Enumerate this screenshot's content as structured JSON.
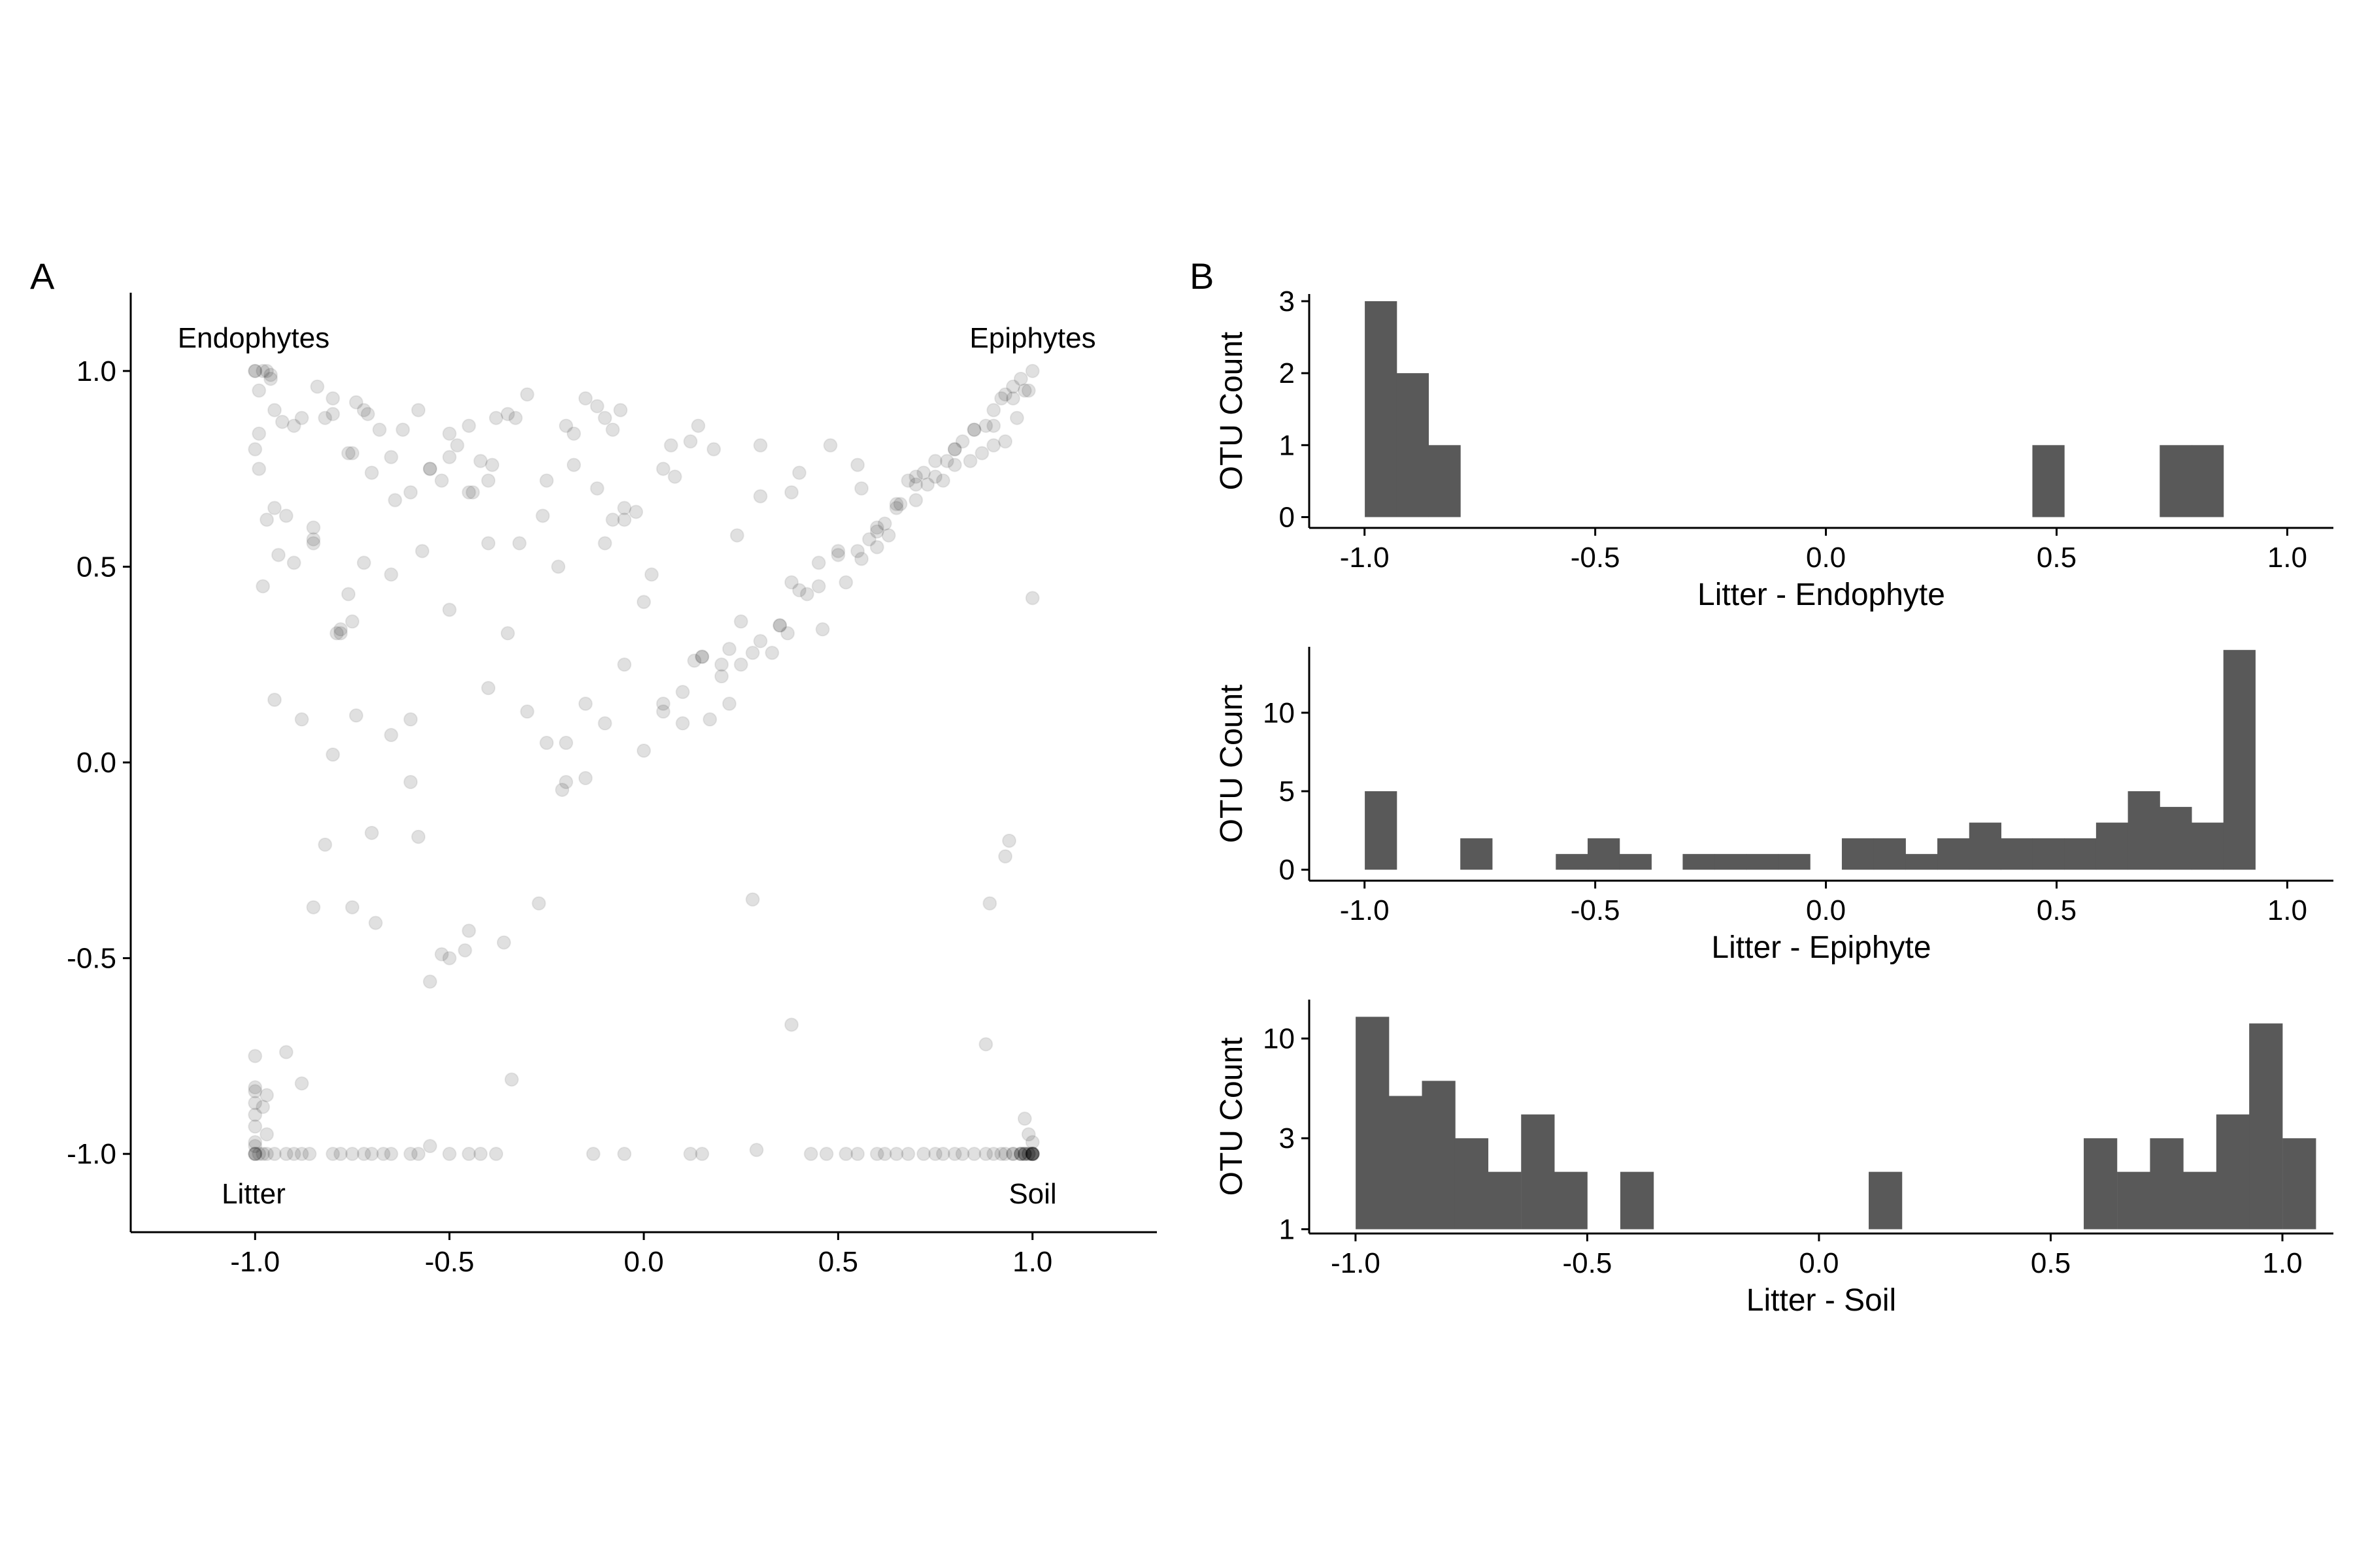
{
  "colors": {
    "bar": "#595959",
    "point": "#000000",
    "axis": "#000000"
  },
  "chart_data": [
    {
      "panel_label": "A",
      "type": "scatter",
      "xlim": [
        -1.32,
        1.32
      ],
      "ylim": [
        -1.2,
        1.2
      ],
      "xticks": [
        -1.0,
        -0.5,
        0.0,
        0.5,
        1.0
      ],
      "xtick_labels": [
        "-1.0",
        "-0.5",
        "0.0",
        "0.5",
        "1.0"
      ],
      "yticks": [
        -1.0,
        -0.5,
        0.0,
        0.5,
        1.0
      ],
      "ytick_labels": [
        "-1.0",
        "-0.5",
        "0.0",
        "0.5",
        "1.0"
      ],
      "grid": false,
      "point_alpha": 0.12,
      "corner_labels": {
        "top_left": "Endophytes",
        "top_right": "Epiphytes",
        "bottom_left": "Litter",
        "bottom_right": "Soil"
      },
      "x": [
        -1.0,
        -0.98,
        -0.97,
        -0.99,
        -0.95,
        -0.93,
        -1.0,
        -0.99,
        -0.96,
        -0.9,
        -0.88,
        -0.85,
        -0.8,
        -0.79,
        -0.78,
        -0.75,
        -0.74,
        -0.72,
        -0.7,
        -0.68,
        -0.65,
        -0.62,
        -0.6,
        -0.58,
        -0.55,
        -0.52,
        -0.5,
        -0.48,
        -0.45,
        -0.42,
        -0.4,
        -0.35,
        -0.3,
        -0.25,
        -0.2,
        -0.18,
        -0.15,
        -0.12,
        -0.1,
        -0.08,
        -0.05,
        -0.02,
        0.0,
        0.05,
        0.08,
        0.12,
        0.15,
        0.18,
        0.2,
        0.22,
        0.25,
        0.3,
        0.35,
        0.38,
        0.4,
        0.45,
        0.5,
        0.55,
        0.58,
        0.6,
        0.62,
        0.65,
        0.68,
        0.7,
        0.72,
        0.75,
        0.78,
        0.8,
        0.82,
        0.85,
        0.88,
        0.9,
        0.92,
        0.93,
        0.95,
        0.97,
        1.0,
        -0.99,
        -0.97,
        -0.95,
        -0.92,
        -0.88,
        -0.85,
        -0.8,
        -0.75,
        -0.7,
        -0.65,
        -0.6,
        -0.55,
        -0.5,
        -0.45,
        -0.4,
        -0.35,
        -0.3,
        -0.25,
        -0.2,
        -0.15,
        -0.1,
        -0.05,
        0.0,
        0.05,
        0.1,
        0.15,
        0.2,
        0.25,
        0.3,
        0.35,
        0.4,
        0.45,
        0.5,
        0.55,
        0.6,
        0.65,
        0.7,
        0.75,
        0.8,
        0.85,
        0.9,
        0.95,
        0.98,
        -1.0,
        -0.98,
        -0.95,
        -0.9,
        -0.85,
        -0.82,
        -0.78,
        -0.76,
        -0.72,
        -0.65,
        -0.6,
        -0.55,
        -0.5,
        -0.45,
        -0.4,
        -0.38,
        -0.32,
        -0.22,
        -0.2,
        -0.15,
        -0.1,
        -0.08,
        -0.05,
        0.02,
        0.05,
        0.1,
        0.13,
        0.17,
        0.22,
        0.28,
        0.33,
        0.37,
        0.42,
        0.46,
        0.52,
        0.56,
        0.6,
        0.63,
        0.66,
        0.7,
        0.73,
        0.77,
        0.8,
        0.84,
        0.87,
        0.9,
        0.93,
        0.96,
        0.99,
        -0.96,
        -0.94,
        -0.84,
        -0.8,
        -0.76,
        -0.71,
        -0.64,
        -0.57,
        -0.5,
        -0.44,
        -0.39,
        -0.33,
        -0.26,
        -0.18,
        -0.12,
        -0.06,
        0.07,
        0.14,
        0.24,
        0.3,
        0.38,
        0.48,
        0.56,
        -0.85,
        -0.74,
        -0.92,
        -0.88,
        -0.82,
        -0.75,
        -0.69,
        -0.58,
        -0.52,
        -0.46,
        -0.36,
        -0.27,
        -0.21,
        0.94,
        0.93,
        0.89,
        0.88,
        0.38,
        0.28,
        -0.34,
        -1.0,
        -1.0,
        -1.0,
        -1.0,
        -1.0,
        -0.99,
        -0.97,
        -0.95,
        -0.92,
        -0.9,
        -0.88,
        -0.86,
        -0.8,
        -0.78,
        -0.75,
        -0.72,
        -0.7,
        -0.67,
        -0.65,
        -0.6,
        -0.58,
        -0.55,
        -0.5,
        -0.45,
        -0.42,
        -0.38,
        -0.13,
        -0.05,
        0.12,
        0.15,
        0.29,
        0.43,
        0.47,
        0.52,
        0.55,
        0.6,
        0.62,
        0.65,
        0.68,
        0.72,
        0.75,
        0.77,
        0.8,
        0.82,
        0.85,
        0.88,
        0.9,
        0.92,
        0.95,
        0.97,
        0.98,
        0.99,
        1.0,
        1.0,
        1.0,
        1.0,
        0.99,
        0.98,
        0.97,
        0.95,
        0.93,
        1.0,
        1.0,
        1.0,
        -1.0,
        -1.0,
        -1.0,
        -1.0,
        -1.0,
        -1.0,
        -0.98,
        -0.97,
        -0.97,
        -0.98,
        0.97,
        0.98,
        0.99,
        1.0,
        0.98,
        1.0
      ],
      "y": [
        1.0,
        1.0,
        1.0,
        0.95,
        0.9,
        0.87,
        0.8,
        0.84,
        0.99,
        0.86,
        0.88,
        0.56,
        0.93,
        0.33,
        0.34,
        0.79,
        0.92,
        0.9,
        0.74,
        0.85,
        0.78,
        0.85,
        0.69,
        0.9,
        0.75,
        0.72,
        0.78,
        0.81,
        0.86,
        0.77,
        0.56,
        0.89,
        0.94,
        0.72,
        0.86,
        0.76,
        0.93,
        0.91,
        0.88,
        0.85,
        0.62,
        0.64,
        0.41,
        0.75,
        0.73,
        0.82,
        0.27,
        0.8,
        0.22,
        0.29,
        0.36,
        0.68,
        0.35,
        0.46,
        0.74,
        0.51,
        0.54,
        0.76,
        0.57,
        0.6,
        0.61,
        0.65,
        0.72,
        0.71,
        0.74,
        0.73,
        0.77,
        0.8,
        0.82,
        0.85,
        0.86,
        0.9,
        0.93,
        0.94,
        0.96,
        0.98,
        1.0,
        0.75,
        0.62,
        0.16,
        0.63,
        0.11,
        -0.37,
        0.02,
        0.36,
        -0.18,
        0.07,
        -0.05,
        -0.56,
        -0.5,
        -0.43,
        0.19,
        0.33,
        0.13,
        0.05,
        -0.05,
        0.15,
        0.1,
        0.25,
        0.03,
        0.15,
        0.18,
        0.27,
        0.25,
        0.25,
        0.31,
        0.35,
        0.44,
        0.45,
        0.53,
        0.54,
        0.59,
        0.66,
        0.73,
        0.77,
        0.8,
        0.85,
        0.86,
        0.93,
        0.95,
        1.0,
        0.45,
        0.65,
        0.51,
        0.57,
        0.88,
        0.33,
        0.43,
        0.51,
        0.48,
        0.11,
        0.75,
        0.39,
        0.69,
        0.72,
        0.88,
        0.56,
        0.5,
        0.05,
        -0.04,
        0.56,
        0.62,
        0.65,
        0.48,
        0.13,
        0.1,
        0.26,
        0.11,
        0.15,
        0.28,
        0.28,
        0.33,
        0.43,
        0.34,
        0.46,
        0.52,
        0.55,
        0.58,
        0.66,
        0.67,
        0.71,
        0.72,
        0.76,
        0.77,
        0.79,
        0.81,
        0.82,
        0.88,
        0.95,
        0.98,
        0.53,
        0.96,
        0.89,
        0.79,
        0.89,
        0.67,
        0.54,
        0.84,
        0.69,
        0.76,
        0.88,
        0.63,
        0.84,
        0.7,
        0.9,
        0.81,
        0.86,
        0.58,
        0.81,
        0.69,
        0.81,
        0.7,
        0.6,
        0.12,
        -0.74,
        -0.82,
        -0.21,
        -0.37,
        -0.41,
        -0.19,
        -0.49,
        -0.48,
        -0.46,
        -0.36,
        -0.07,
        -0.2,
        -0.24,
        -0.36,
        -0.72,
        -0.67,
        -0.35,
        -0.81,
        -0.93,
        -0.75,
        -0.83,
        -0.87,
        -0.9,
        -1.0,
        -1.0,
        -1.0,
        -1.0,
        -1.0,
        -1.0,
        -1.0,
        -1.0,
        -1.0,
        -1.0,
        -1.0,
        -1.0,
        -1.0,
        -1.0,
        -1.0,
        -1.0,
        -0.98,
        -1.0,
        -1.0,
        -1.0,
        -1.0,
        -1.0,
        -1.0,
        -1.0,
        -1.0,
        -0.99,
        -1.0,
        -1.0,
        -1.0,
        -1.0,
        -1.0,
        -1.0,
        -1.0,
        -1.0,
        -1.0,
        -1.0,
        -1.0,
        -1.0,
        -1.0,
        -1.0,
        -1.0,
        -1.0,
        -1.0,
        -1.0,
        -1.0,
        -1.0,
        -1.0,
        -1.0,
        -1.0,
        -1.0,
        -0.97,
        -0.95,
        -0.91,
        -1.0,
        -1.0,
        -1.0,
        -1.0,
        -1.0,
        -1.0,
        -1.0,
        -0.84,
        -0.98,
        -0.97,
        -1.0,
        -1.0,
        -1.0,
        -0.95,
        -0.85,
        -0.88,
        -1.0,
        -1.0,
        -1.0,
        -1.0,
        -1.0,
        0.42
      ]
    },
    {
      "panel_label": "B",
      "type": "bar",
      "xlabel": "Litter - Endophyte",
      "ylabel": "OTU Count",
      "xlim": [
        -1.12,
        1.1
      ],
      "ylim": [
        -0.15,
        3.1
      ],
      "xticks": [
        -1.0,
        -0.5,
        0.0,
        0.5,
        1.0
      ],
      "xtick_labels": [
        "-1.0",
        "-0.5",
        "0.0",
        "0.5",
        "1.0"
      ],
      "yticks": [
        0,
        1,
        2,
        3
      ],
      "ytick_labels": [
        "0",
        "1",
        "2",
        "3"
      ],
      "bin_width": 0.0689,
      "bin_centers": [
        -0.965,
        -0.896,
        -0.827,
        0.482,
        0.758,
        0.827
      ],
      "values": [
        3,
        2,
        1,
        1,
        1,
        1
      ]
    },
    {
      "panel_label": "",
      "type": "bar",
      "xlabel": "Litter - Epiphyte",
      "ylabel": "OTU Count",
      "xlim": [
        -1.12,
        1.1
      ],
      "ylim": [
        -0.7,
        14.2
      ],
      "xticks": [
        -1.0,
        -0.5,
        0.0,
        0.5,
        1.0
      ],
      "xtick_labels": [
        "-1.0",
        "-0.5",
        "0.0",
        "0.5",
        "1.0"
      ],
      "yticks": [
        0,
        5,
        10
      ],
      "ytick_labels": [
        "0",
        "5",
        "10"
      ],
      "bin_width": 0.0689,
      "bin_centers": [
        -0.965,
        -0.758,
        -0.551,
        -0.482,
        -0.413,
        -0.276,
        -0.207,
        -0.138,
        -0.069,
        0.069,
        0.138,
        0.207,
        0.276,
        0.345,
        0.413,
        0.482,
        0.551,
        0.62,
        0.689,
        0.758,
        0.827,
        0.896
      ],
      "values": [
        5,
        2,
        1,
        2,
        1,
        1,
        1,
        1,
        1,
        2,
        2,
        1,
        2,
        3,
        2,
        2,
        2,
        3,
        5,
        4,
        3,
        14
      ]
    },
    {
      "panel_label": "",
      "type": "bar",
      "xlabel": "Litter - Soil",
      "ylabel": "OTU Count",
      "y_scale": "log",
      "xlim": [
        -1.1,
        1.11
      ],
      "ylim": [
        0.95,
        16
      ],
      "xticks": [
        -1.0,
        -0.5,
        0.0,
        0.5,
        1.0
      ],
      "xtick_labels": [
        "-1.0",
        "-0.5",
        "0.0",
        "0.5",
        "1.0"
      ],
      "yticks": [
        1,
        3,
        10
      ],
      "ytick_labels": [
        "1",
        "3",
        "10"
      ],
      "bin_width": 0.0714,
      "bin_centers": [
        -0.964,
        -0.893,
        -0.821,
        -0.75,
        -0.679,
        -0.607,
        -0.536,
        -0.393,
        0.143,
        0.607,
        0.679,
        0.75,
        0.821,
        0.893,
        0.964,
        1.036
      ],
      "values": [
        13,
        5,
        6,
        3,
        2,
        4,
        2,
        2,
        2,
        3,
        2,
        3,
        2,
        4,
        12,
        3
      ]
    }
  ]
}
